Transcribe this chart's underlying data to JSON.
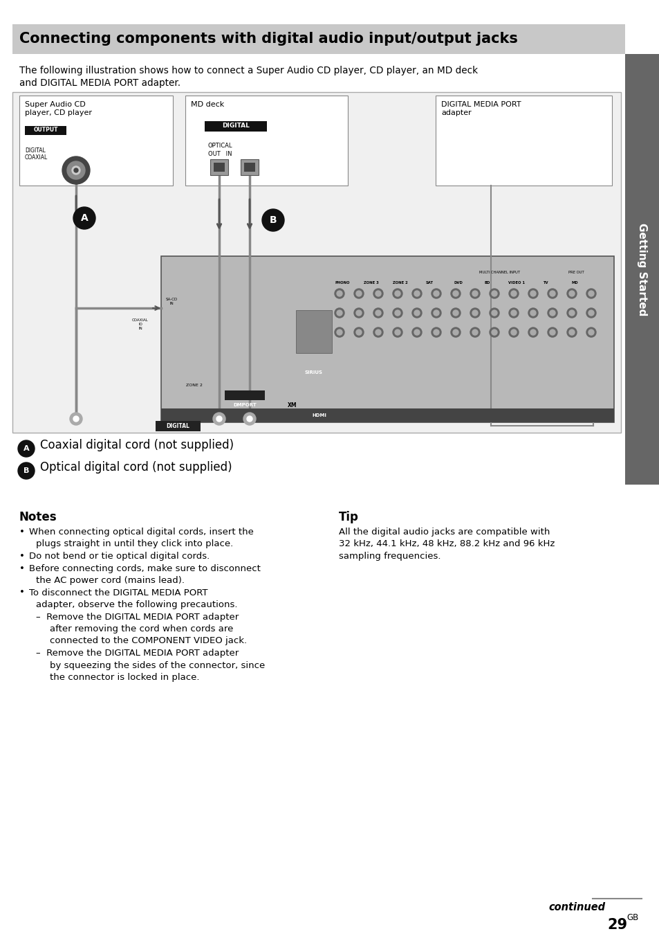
{
  "title": "Connecting components with digital audio input/output jacks",
  "title_bg": "#c8c8c8",
  "sidebar_color": "#666666",
  "sidebar_text": "Getting Started",
  "intro_line1": "The following illustration shows how to connect a Super Audio CD player, CD player, an MD deck",
  "intro_line2": "and DIGITAL MEDIA PORT adapter.",
  "notes_title": "Notes",
  "tip_title": "Tip",
  "tip_line1": "All the digital audio jacks are compatible with",
  "tip_line2": "32 kHz, 44.1 kHz, 48 kHz, 88.2 kHz and 96 kHz",
  "tip_line3": "sampling frequencies.",
  "continued_text": "continued",
  "page_number": "29",
  "page_suffix": "GB",
  "bg_color": "#ffffff",
  "text_color": "#000000"
}
